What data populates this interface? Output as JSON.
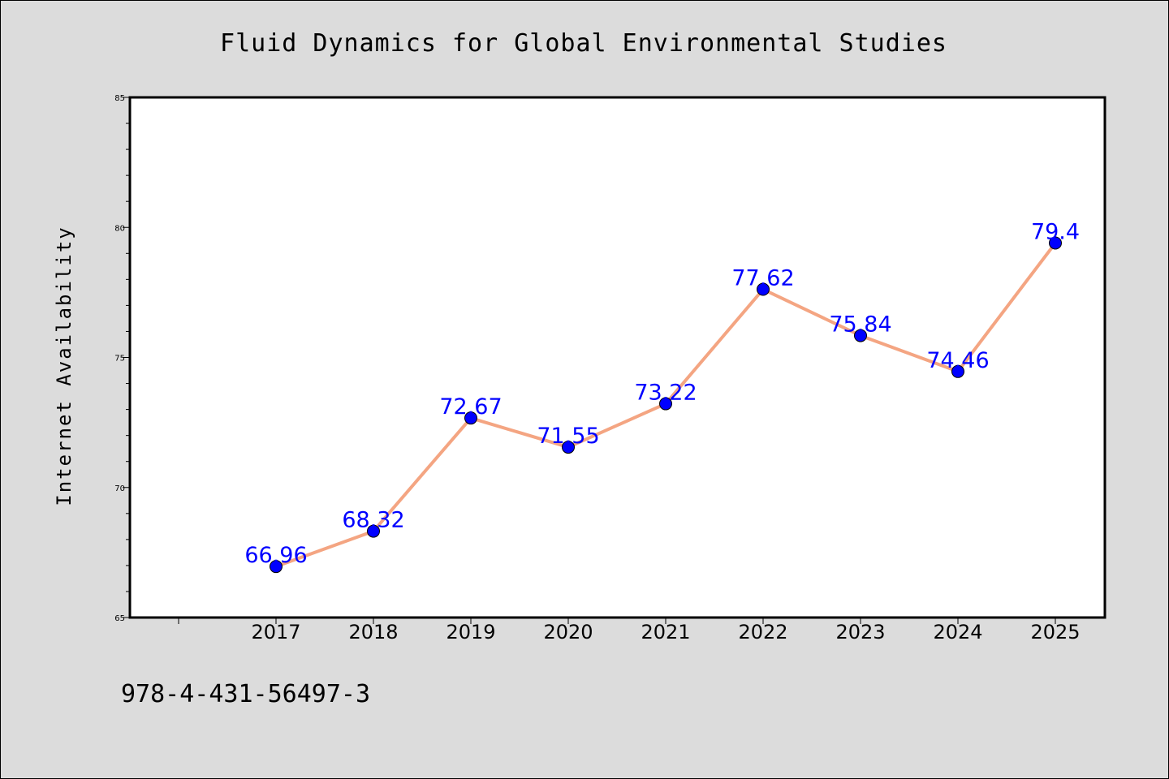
{
  "chart_data": {
    "type": "line",
    "title": "Fluid Dynamics for Global Environmental Studies",
    "xlabel": "",
    "ylabel": "Internet Availability",
    "categories": [
      "2017",
      "2018",
      "2019",
      "2020",
      "2021",
      "2022",
      "2023",
      "2024",
      "2025"
    ],
    "series": [
      {
        "values": [
          66.96,
          68.32,
          72.67,
          71.55,
          73.22,
          77.62,
          75.84,
          74.46,
          79.4
        ],
        "labels": [
          "66.96",
          "68.32",
          "72.67",
          "71.55",
          "73.22",
          "77.62",
          "75.84",
          "74.46",
          "79.4"
        ],
        "line_color": "#f4a582",
        "marker_color": "#0000ff",
        "label_color": "#0000ff"
      }
    ],
    "ylim": [
      65,
      85
    ],
    "yticks": [
      "65",
      "70",
      "75",
      "80",
      "85"
    ],
    "grid": false,
    "legend": "none"
  },
  "footer": {
    "isbn": "978-4-431-56497-3"
  },
  "colors": {
    "background": "#dcdcdc",
    "plot_background": "#ffffff",
    "axis": "#000000"
  }
}
